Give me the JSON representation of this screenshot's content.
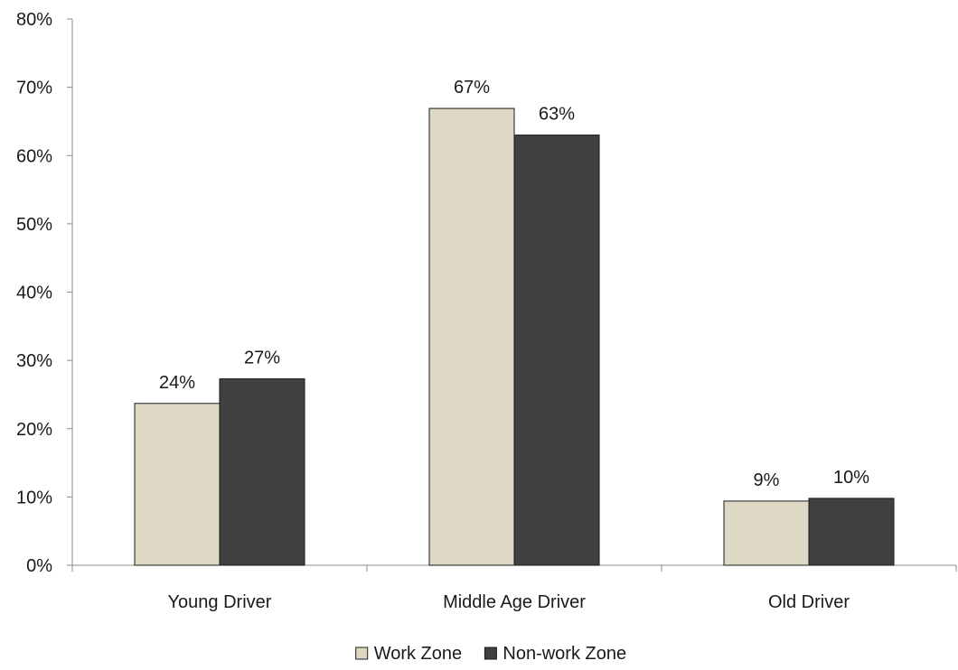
{
  "chart_data": {
    "type": "bar",
    "categories": [
      "Young Driver",
      "Middle Age Driver",
      "Old Driver"
    ],
    "series": [
      {
        "name": "Work Zone",
        "values": [
          23.7,
          66.9,
          9.4
        ],
        "labels": [
          "24%",
          "67%",
          "9%"
        ],
        "color": "#ddd8c4"
      },
      {
        "name": "Non-work Zone",
        "values": [
          27.3,
          63.0,
          9.8
        ],
        "labels": [
          "27%",
          "63%",
          "10%"
        ],
        "color": "#404040"
      }
    ],
    "y_ticks": [
      "0%",
      "10%",
      "20%",
      "30%",
      "40%",
      "50%",
      "60%",
      "70%",
      "80%"
    ],
    "ylim": [
      0,
      80
    ],
    "grid": false,
    "legend_position": "bottom-center",
    "title": "",
    "xlabel": "",
    "ylabel": ""
  }
}
